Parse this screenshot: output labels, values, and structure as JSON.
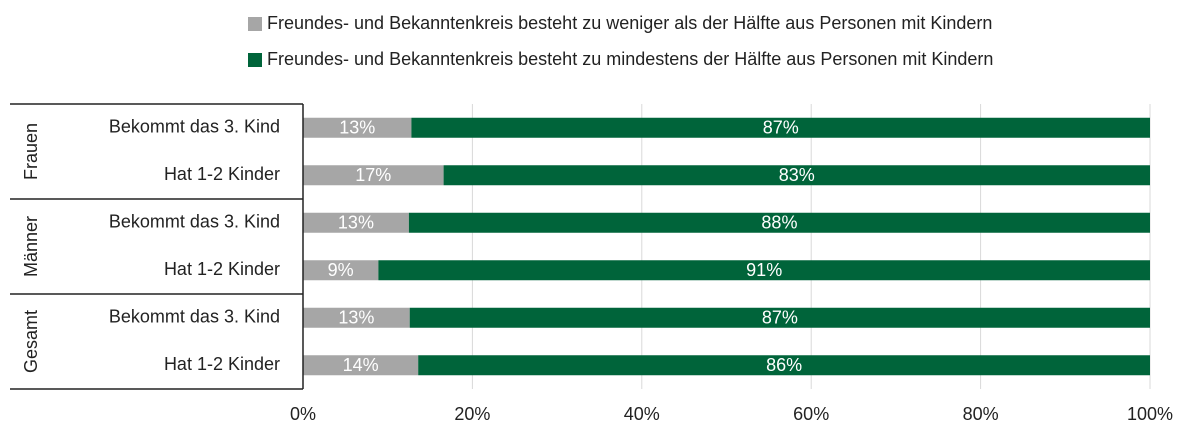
{
  "chart_data": {
    "type": "stacked-bar-horizontal",
    "categories": [
      "Bekommt das 3. Kind",
      "Hat 1-2 Kinder",
      "Bekommt das 3. Kind",
      "Hat 1-2 Kinder",
      "Bekommt das 3. Kind",
      "Hat 1-2 Kinder"
    ],
    "groups": [
      "Frauen",
      "Männer",
      "Gesamt"
    ],
    "series": [
      {
        "name": "Freundes- und Bekanntenkreis besteht zu weniger als der Hälfte aus Personen mit Kindern",
        "color": "#a6a6a6",
        "values": [
          12.8,
          16.6,
          12.5,
          8.9,
          12.6,
          13.6
        ],
        "value_labels": [
          "13%",
          "17%",
          "13%",
          "9%",
          "13%",
          "14%"
        ]
      },
      {
        "name": "Freundes- und Bekanntenkreis besteht zu mindestens der Hälfte aus Personen mit Kindern",
        "color": "#00643a",
        "values": [
          87.2,
          83.4,
          87.5,
          91.1,
          87.4,
          86.4
        ],
        "value_labels": [
          "87%",
          "83%",
          "88%",
          "91%",
          "87%",
          "86%"
        ]
      }
    ],
    "xlim": [
      0,
      100
    ],
    "xticks": [
      {
        "value": 0,
        "label": "0%"
      },
      {
        "value": 20,
        "label": "20%"
      },
      {
        "value": 40,
        "label": "40%"
      },
      {
        "value": 60,
        "label": "60%"
      },
      {
        "value": 80,
        "label": "80%"
      },
      {
        "value": 100,
        "label": "100%"
      }
    ],
    "grid": true
  }
}
